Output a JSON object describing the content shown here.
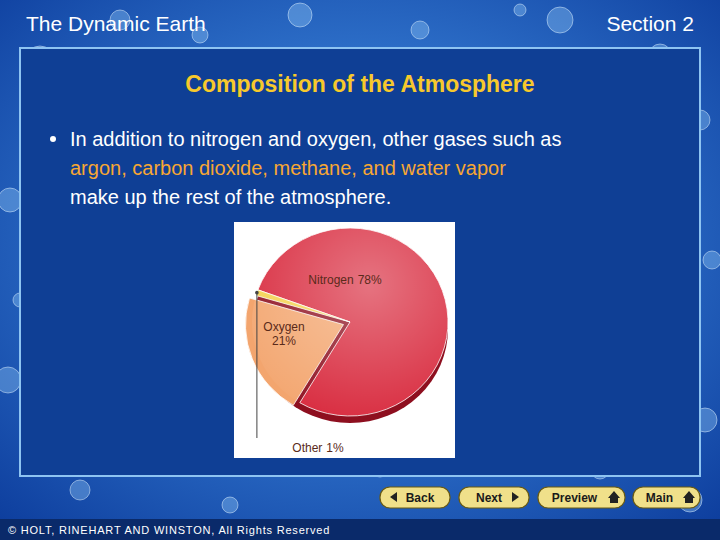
{
  "header": {
    "left": "The Dynamic Earth",
    "right": "Section 2"
  },
  "heading": "Composition of the Atmosphere",
  "bullet": [
    {
      "text": "In addition to nitrogen and oxygen, other gases such as",
      "highlight": false
    },
    {
      "text": "argon, carbon dioxide, methane, and water vapor",
      "highlight": true
    },
    {
      "text": "make up the rest of the atmosphere.",
      "highlight": false
    }
  ],
  "chart_data": {
    "type": "pie",
    "categories": [
      "Nitrogen",
      "Oxygen",
      "Other"
    ],
    "values": [
      78,
      21,
      1
    ],
    "value_labels": [
      "78%",
      "21%",
      "1%"
    ],
    "colors": [
      "#d8283c",
      "#f3a56e",
      "#f4d24e"
    ],
    "data_labels": true
  },
  "nav": [
    "Back",
    "Next",
    "Preview",
    "Main"
  ],
  "footer": "© HOLT, RINEHART AND WINSTON, All Rights Reserved"
}
